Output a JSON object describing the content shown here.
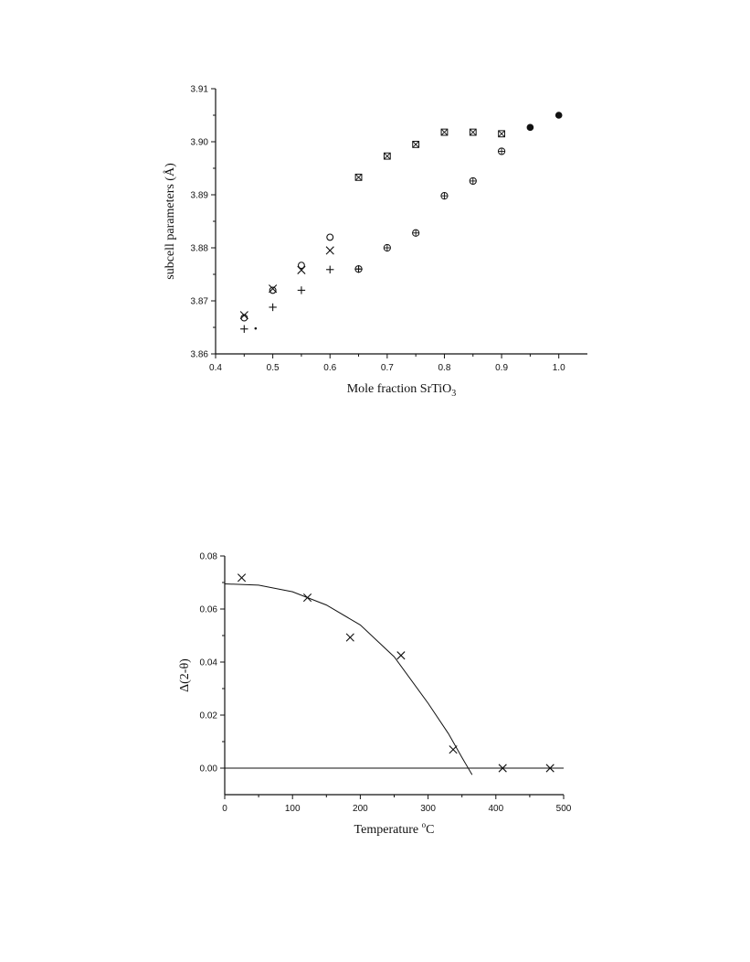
{
  "chart_data": [
    {
      "type": "scatter",
      "title": "",
      "xlabel": "Mole fraction SrTiO",
      "xlabel_sub": "3",
      "ylabel": "subcell parameters  (Å)",
      "xlim": [
        0.4,
        1.05
      ],
      "ylim": [
        3.86,
        3.91
      ],
      "x_ticks": [
        0.4,
        0.5,
        0.6,
        0.7,
        0.8,
        0.9,
        1.0
      ],
      "x_tick_labels": [
        "0.4",
        "0.5",
        "0.6",
        "0.7",
        "0.8",
        "0.9",
        "1.0"
      ],
      "y_ticks": [
        3.86,
        3.87,
        3.88,
        3.89,
        3.9,
        3.91
      ],
      "y_tick_labels": [
        "3.86",
        "3.87",
        "3.88",
        "3.89",
        "3.90",
        "3.91"
      ],
      "grid": false,
      "series": [
        {
          "marker": "plus",
          "points": [
            [
              0.45,
              3.8647
            ],
            [
              0.5,
              3.8688
            ],
            [
              0.55,
              3.872
            ],
            [
              0.6,
              3.8759
            ],
            [
              0.65,
              3.876
            ]
          ]
        },
        {
          "marker": "dot",
          "points": [
            [
              0.47,
              3.8648
            ]
          ]
        },
        {
          "marker": "cross",
          "points": [
            [
              0.45,
              3.8673
            ],
            [
              0.5,
              3.8723
            ],
            [
              0.55,
              3.8758
            ],
            [
              0.6,
              3.8795
            ]
          ]
        },
        {
          "marker": "circle",
          "points": [
            [
              0.45,
              3.8668
            ],
            [
              0.5,
              3.872
            ],
            [
              0.55,
              3.8767
            ],
            [
              0.6,
              3.882
            ]
          ]
        },
        {
          "marker": "circle-plus",
          "points": [
            [
              0.65,
              3.876
            ],
            [
              0.7,
              3.88
            ],
            [
              0.75,
              3.8828
            ],
            [
              0.8,
              3.8898
            ],
            [
              0.85,
              3.8926
            ],
            [
              0.9,
              3.8982
            ]
          ]
        },
        {
          "marker": "boxed-cross",
          "points": [
            [
              0.65,
              3.8933
            ],
            [
              0.7,
              3.8973
            ],
            [
              0.75,
              3.8995
            ],
            [
              0.8,
              3.9018
            ],
            [
              0.85,
              3.9018
            ],
            [
              0.9,
              3.9015
            ]
          ]
        },
        {
          "marker": "filled-circle",
          "points": [
            [
              0.95,
              3.9027
            ],
            [
              1.0,
              3.905
            ]
          ]
        }
      ]
    },
    {
      "type": "scatter",
      "title": "",
      "xlabel": "Temperature ",
      "xlabel_unit_sup": "o",
      "xlabel_unit": "C",
      "ylabel": "Δ(2-θ)",
      "xlim": [
        0,
        500
      ],
      "ylim": [
        -0.01,
        0.08
      ],
      "x_ticks": [
        0,
        100,
        200,
        300,
        400,
        500
      ],
      "x_tick_labels": [
        "0",
        "100",
        "200",
        "300",
        "400",
        "500"
      ],
      "y_ticks": [
        0.0,
        0.02,
        0.04,
        0.06,
        0.08
      ],
      "y_tick_labels": [
        "0.00",
        "0.02",
        "0.04",
        "0.06",
        "0.08"
      ],
      "grid": false,
      "series": [
        {
          "marker": "cross",
          "points": [
            [
              25,
              0.0718
            ],
            [
              122,
              0.0643
            ],
            [
              185,
              0.0493
            ],
            [
              260,
              0.0425
            ],
            [
              337,
              0.007
            ],
            [
              410,
              0.0
            ],
            [
              480,
              0.0
            ]
          ]
        }
      ],
      "fit_curve": {
        "x": [
          0,
          50,
          100,
          150,
          200,
          250,
          300,
          330,
          350,
          365
        ],
        "y": [
          0.0695,
          0.069,
          0.0665,
          0.0615,
          0.054,
          0.042,
          0.0245,
          0.013,
          0.004,
          -0.0025
        ]
      },
      "baseline": {
        "y": 0.0,
        "x": [
          0,
          500
        ]
      }
    }
  ]
}
